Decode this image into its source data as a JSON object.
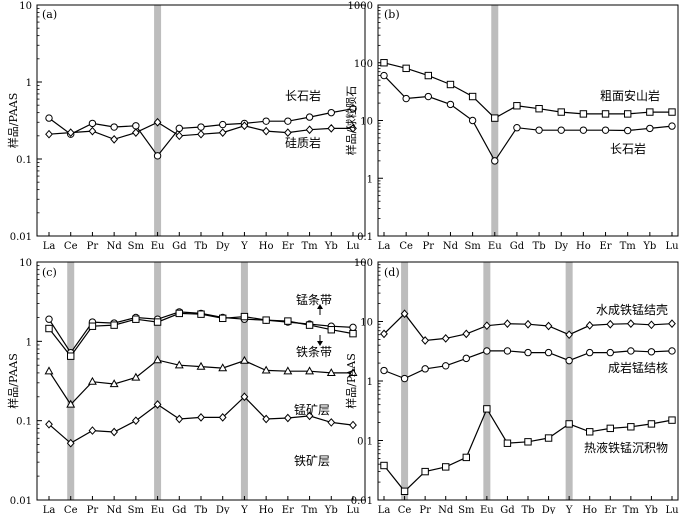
{
  "chart_data": [
    {
      "type": "line",
      "panel": "(a)",
      "categories": [
        "La",
        "Ce",
        "Pr",
        "Nd",
        "Sm",
        "Eu",
        "Gd",
        "Tb",
        "Dy",
        "Y",
        "Ho",
        "Er",
        "Tm",
        "Yb",
        "Lu"
      ],
      "ylabel": "样品/PAAS",
      "yscale": "log",
      "ylim": [
        0.01,
        10
      ],
      "yticks": [
        "0.01",
        "0.1",
        "1",
        "10"
      ],
      "highlight_bands": [
        "Eu"
      ],
      "series": [
        {
          "name": "长石岩",
          "marker": "circle",
          "values": [
            0.34,
            0.21,
            0.29,
            0.26,
            0.27,
            0.11,
            0.25,
            0.26,
            0.28,
            0.29,
            0.31,
            0.31,
            0.35,
            0.4,
            0.45
          ]
        },
        {
          "name": "硅质岩",
          "marker": "diamond",
          "values": [
            0.21,
            0.22,
            0.23,
            0.18,
            0.22,
            0.3,
            0.2,
            0.21,
            0.22,
            0.27,
            0.23,
            0.22,
            0.24,
            0.25,
            0.25
          ]
        }
      ],
      "annotations": [
        {
          "text": "长石岩",
          "series": "长石岩"
        },
        {
          "text": "硅质岩",
          "series": "硅质岩"
        }
      ]
    },
    {
      "type": "line",
      "panel": "(b)",
      "categories": [
        "La",
        "Ce",
        "Pr",
        "Nd",
        "Sm",
        "Eu",
        "Gd",
        "Tb",
        "Dy",
        "Ho",
        "Er",
        "Tm",
        "Yb",
        "Lu"
      ],
      "ylabel": "样品/球粒陨石",
      "yscale": "log",
      "ylim": [
        0.1,
        1000
      ],
      "yticks": [
        "0.1",
        "1",
        "10",
        "100",
        "1000"
      ],
      "highlight_bands": [
        "Eu"
      ],
      "series": [
        {
          "name": "粗面安山岩",
          "marker": "square",
          "values": [
            100,
            80,
            60,
            42,
            26,
            11,
            18,
            16,
            14,
            13,
            13,
            13,
            14,
            14
          ]
        },
        {
          "name": "长石岩",
          "marker": "circle",
          "values": [
            60,
            24,
            26,
            19,
            10,
            2,
            7.5,
            6.8,
            6.8,
            6.8,
            6.8,
            6.7,
            7.3,
            8
          ]
        }
      ],
      "annotations": [
        {
          "text": "粗面安山岩",
          "series": "粗面安山岩"
        },
        {
          "text": "长石岩",
          "series": "长石岩"
        }
      ]
    },
    {
      "type": "line",
      "panel": "(c)",
      "categories": [
        "La",
        "Ce",
        "Pr",
        "Nd",
        "Sm",
        "Eu",
        "Gd",
        "Tb",
        "Dy",
        "Y",
        "Ho",
        "Er",
        "Tm",
        "Yb",
        "Lu"
      ],
      "ylabel": "样品/PAAS",
      "yscale": "log",
      "ylim": [
        0.01,
        10
      ],
      "yticks": [
        "0.01",
        "0.1",
        "1",
        "10"
      ],
      "highlight_bands": [
        "Ce",
        "Eu",
        "Y"
      ],
      "series": [
        {
          "name": "锰条带",
          "marker": "circle",
          "values": [
            1.9,
            0.72,
            1.75,
            1.7,
            2.0,
            1.9,
            2.35,
            2.25,
            2.0,
            1.9,
            1.85,
            1.75,
            1.65,
            1.55,
            1.5
          ]
        },
        {
          "name": "铁条带",
          "marker": "square",
          "values": [
            1.45,
            0.65,
            1.55,
            1.6,
            1.9,
            1.75,
            2.25,
            2.2,
            1.95,
            2.05,
            1.85,
            1.8,
            1.6,
            1.4,
            1.25
          ]
        },
        {
          "name": "锰矿层",
          "marker": "triangle",
          "values": [
            0.42,
            0.16,
            0.31,
            0.29,
            0.35,
            0.58,
            0.5,
            0.48,
            0.46,
            0.57,
            0.43,
            0.42,
            0.42,
            0.4,
            0.4
          ]
        },
        {
          "name": "铁矿层",
          "marker": "diamond",
          "values": [
            0.09,
            0.052,
            0.075,
            0.072,
            0.1,
            0.16,
            0.105,
            0.11,
            0.11,
            0.2,
            0.105,
            0.108,
            0.115,
            0.095,
            0.088
          ]
        }
      ],
      "annotations": [
        {
          "text": "锰条带",
          "series": "锰条带",
          "arrow": "up"
        },
        {
          "text": "铁条带",
          "series": "铁条带",
          "arrow": "down"
        },
        {
          "text": "锰矿层",
          "series": "锰矿层"
        },
        {
          "text": "铁矿层",
          "series": "铁矿层"
        }
      ]
    },
    {
      "type": "line",
      "panel": "(d)",
      "categories": [
        "La",
        "Ce",
        "Pr",
        "Nd",
        "Sm",
        "Eu",
        "Gd",
        "Tb",
        "Dy",
        "Y",
        "Ho",
        "Er",
        "Tm",
        "Yb",
        "Lu"
      ],
      "ylabel": "样品/PAAS",
      "yscale": "log",
      "ylim": [
        0.01,
        100
      ],
      "yticks": [
        "0.01",
        "0.1",
        "1",
        "10",
        "100"
      ],
      "highlight_bands": [
        "Ce",
        "Eu",
        "Y"
      ],
      "series": [
        {
          "name": "水成铁锰结壳",
          "marker": "diamond",
          "values": [
            6.2,
            13.5,
            4.8,
            5.2,
            6.2,
            8.5,
            9.2,
            9.0,
            8.4,
            6.0,
            8.6,
            9.0,
            9.2,
            8.8,
            9.2
          ]
        },
        {
          "name": "成岩锰结核",
          "marker": "circle",
          "values": [
            1.5,
            1.1,
            1.6,
            1.8,
            2.4,
            3.2,
            3.2,
            3.0,
            3.0,
            2.2,
            3.0,
            3.0,
            3.2,
            3.1,
            3.2
          ]
        },
        {
          "name": "热液铁锰沉积物",
          "marker": "square",
          "values": [
            0.038,
            0.014,
            0.03,
            0.036,
            0.052,
            0.34,
            0.09,
            0.095,
            0.11,
            0.19,
            0.14,
            0.16,
            0.17,
            0.19,
            0.22
          ]
        }
      ],
      "annotations": [
        {
          "text": "水成铁锰结壳",
          "series": "水成铁锰结壳"
        },
        {
          "text": "成岩锰结核",
          "series": "成岩锰结核"
        },
        {
          "text": "热液铁锰沉积物",
          "series": "热液铁锰沉积物"
        }
      ]
    }
  ]
}
